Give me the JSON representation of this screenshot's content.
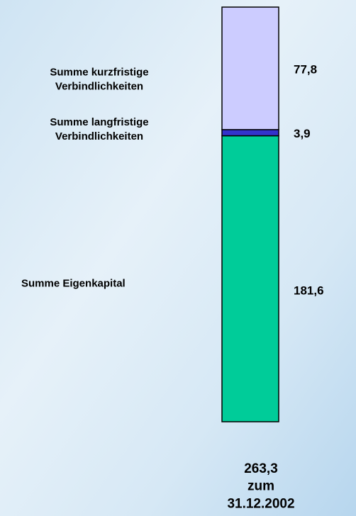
{
  "chart_data": {
    "type": "stacked_bar",
    "categories": [
      "zum 31.12.2002"
    ],
    "total": 263.3,
    "total_label": "263,3",
    "series": [
      {
        "name": "Summe Eigenkapital",
        "color": "#00cc99",
        "values": [
          181.6
        ],
        "value_labels": [
          "181,6"
        ]
      },
      {
        "name": "Summe langfristige\nVerbindlichkeiten",
        "color": "#3333cc",
        "values": [
          3.9
        ],
        "value_labels": [
          "3,9"
        ]
      },
      {
        "name": "Summe kurzfristige\nVerbindlichkeiten",
        "color": "#ccccff",
        "values": [
          77.8
        ],
        "value_labels": [
          "77,8"
        ]
      }
    ]
  }
}
